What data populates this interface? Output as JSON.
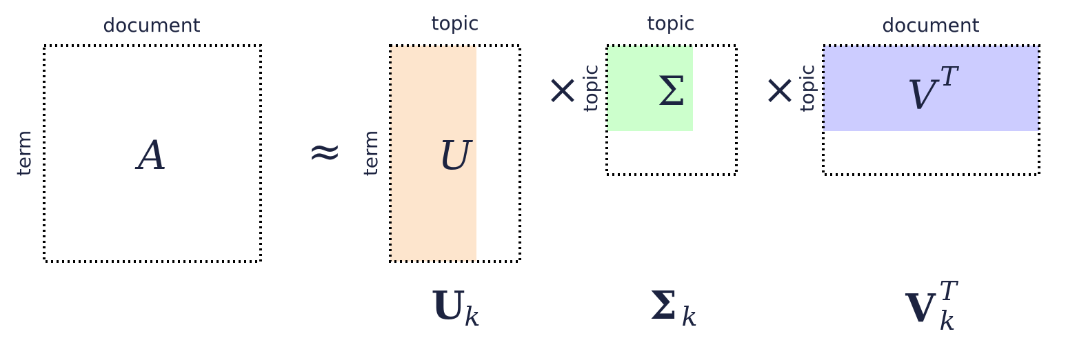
{
  "labels": {
    "a_top": "document",
    "a_side": "term",
    "u_top": "topic",
    "u_side": "term",
    "s_top": "topic",
    "s_side": "topic",
    "v_top": "document",
    "v_side": "topic"
  },
  "matrices": {
    "a": "A",
    "u": "U",
    "sigma": "Σ",
    "v": "V",
    "v_sup": "T"
  },
  "operators": {
    "approx": "≈",
    "times1": "×",
    "times2": "×"
  },
  "captions": {
    "u_main": "U",
    "u_sub": "k",
    "s_main": "Σ",
    "s_sub": "k",
    "v_main": "V",
    "v_sup": "T",
    "v_sub": "k"
  },
  "colors": {
    "u_fill": "#fde5cd",
    "sigma_fill": "#ccffcc",
    "v_fill": "#ccccff",
    "text": "#1c2340"
  }
}
